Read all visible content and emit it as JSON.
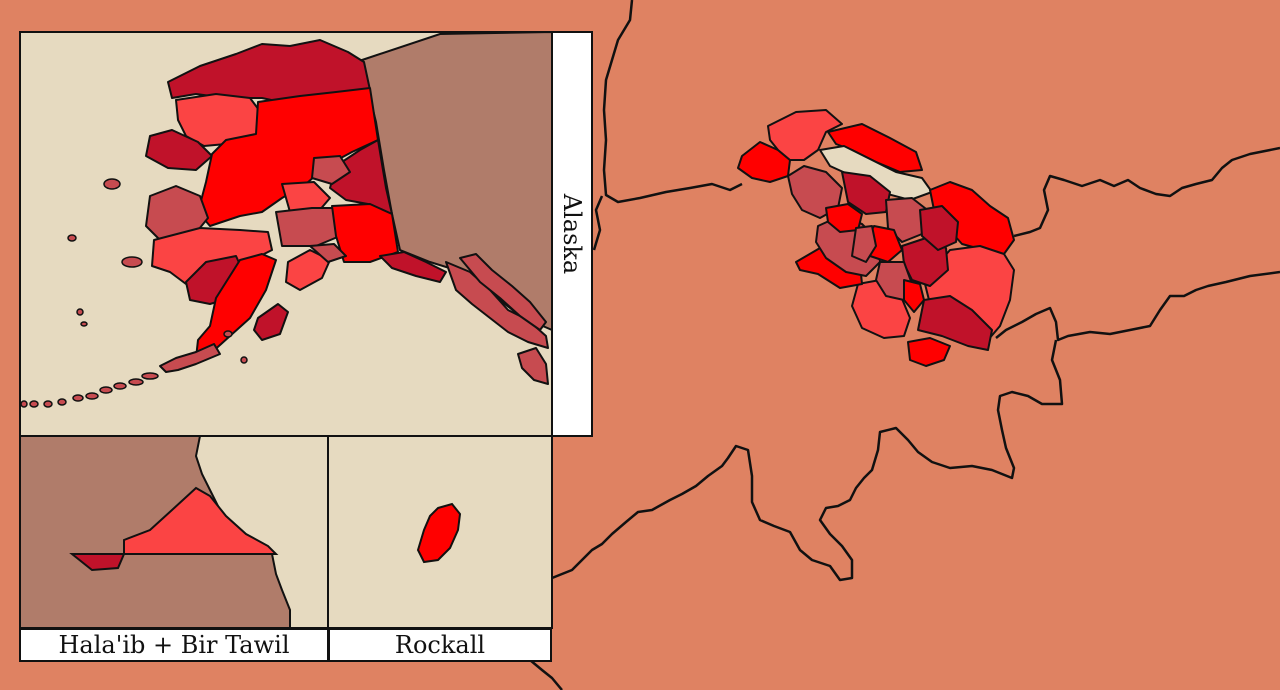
{
  "insets": {
    "alaska": {
      "label": "Alaska"
    },
    "halaib": {
      "label": "Hala'ib + Bir Tawil"
    },
    "rockall": {
      "label": "Rockall"
    }
  },
  "colors": {
    "background": "#df8262",
    "sea": "#e6dac0",
    "foreign_land": "#b07c6a",
    "border": "#111111",
    "shade_bright_red": "#ff0000",
    "shade_light_red": "#fb4444",
    "shade_dark_red": "#c0122a",
    "shade_muted_red": "#c74b50"
  }
}
